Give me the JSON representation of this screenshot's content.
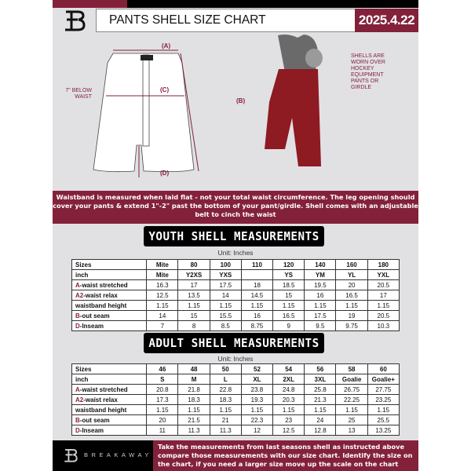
{
  "header": {
    "title": "PANTS SHELL SIZE CHART",
    "date": "2025.4.22",
    "brand_logo": "B"
  },
  "colors": {
    "accent": "#83213b",
    "dark": "#000000",
    "panel": "#e1e1e4"
  },
  "diagram": {
    "label_a": "(A)",
    "label_b": "(B)",
    "label_c": "(C)",
    "label_d": "(D)",
    "below_waist": "7\" BELOW WAIST",
    "note": "SHELLS ARE WORN OVER HOCKEY EQUIPMENT PANTS OR GIRDLE"
  },
  "info_band": "Waistband is measured when laid flat - not your total waist circumference. The leg opening should cover your pants & extend 1\"-2\" past the bottom of your pant/girdle. Shell comes with an adjustable belt to cinch the waist",
  "youth": {
    "title": "YOUTH SHELL MEASUREMENTS",
    "unit": "Unit: Inches",
    "rows": [
      {
        "prefix": "",
        "label": "Sizes",
        "values": [
          "Mite",
          "80",
          "100",
          "110",
          "120",
          "140",
          "160",
          "180"
        ]
      },
      {
        "prefix": "",
        "label": "inch",
        "values": [
          "Mite",
          "Y2XS",
          "YXS",
          "",
          "YS",
          "YM",
          "YL",
          "YXL"
        ]
      },
      {
        "prefix": "A",
        "label": "-waist stretched",
        "values": [
          "16.3",
          "17",
          "17.5",
          "18",
          "18.5",
          "19.5",
          "20",
          "20.5"
        ]
      },
      {
        "prefix": "A2",
        "label": "-waist relax",
        "values": [
          "12.5",
          "13.5",
          "14",
          "14.5",
          "15",
          "16",
          "16.5",
          "17"
        ]
      },
      {
        "prefix": "",
        "label": "waistband height",
        "values": [
          "1.15",
          "1.15",
          "1.15",
          "1.15",
          "1.15",
          "1.15",
          "1.15",
          "1.15"
        ]
      },
      {
        "prefix": "B",
        "label": "-out seam",
        "values": [
          "14",
          "15",
          "15.5",
          "16",
          "16.5",
          "17.5",
          "19",
          "20.5"
        ]
      },
      {
        "prefix": "D",
        "label": "-Inseam",
        "values": [
          "7",
          "8",
          "8.5",
          "8.75",
          "9",
          "9.5",
          "9.75",
          "10.3"
        ]
      }
    ]
  },
  "adult": {
    "title": "ADULT SHELL MEASUREMENTS",
    "unit": "Unit: Inches",
    "rows": [
      {
        "prefix": "",
        "label": "Sizes",
        "values": [
          "46",
          "48",
          "50",
          "52",
          "54",
          "56",
          "58",
          "60"
        ]
      },
      {
        "prefix": "",
        "label": "inch",
        "values": [
          "S",
          "M",
          "L",
          "XL",
          "2XL",
          "3XL",
          "Goalie",
          "Goalie+"
        ]
      },
      {
        "prefix": "A",
        "label": "-waist stretched",
        "values": [
          "20.8",
          "21.8",
          "22.8",
          "23.8",
          "24.8",
          "25.8",
          "26.75",
          "27.75"
        ]
      },
      {
        "prefix": "A2",
        "label": "-waist relax",
        "values": [
          "17.3",
          "18.3",
          "18.3",
          "19.3",
          "20.3",
          "21.3",
          "22.25",
          "23.25"
        ]
      },
      {
        "prefix": "",
        "label": "waistband height",
        "values": [
          "1.15",
          "1.15",
          "1.15",
          "1.15",
          "1.15",
          "1.15",
          "1.15",
          "1.15"
        ]
      },
      {
        "prefix": "B",
        "label": "-out seam",
        "values": [
          "20",
          "21.5",
          "21",
          "22.3",
          "23",
          "24",
          "25",
          "25.5"
        ]
      },
      {
        "prefix": "D",
        "label": "-Inseam",
        "values": [
          "11",
          "11.3",
          "11.3",
          "12",
          "12.5",
          "12.8",
          "13",
          "13.25"
        ]
      }
    ]
  },
  "footer": {
    "brand": "BREAKAWAY",
    "text": "Take the measurements from last seasons shell as instructed above compare those measurements  with our size chart. Identify the size on the chart, if you need a larger size move up the scale on the chart"
  }
}
